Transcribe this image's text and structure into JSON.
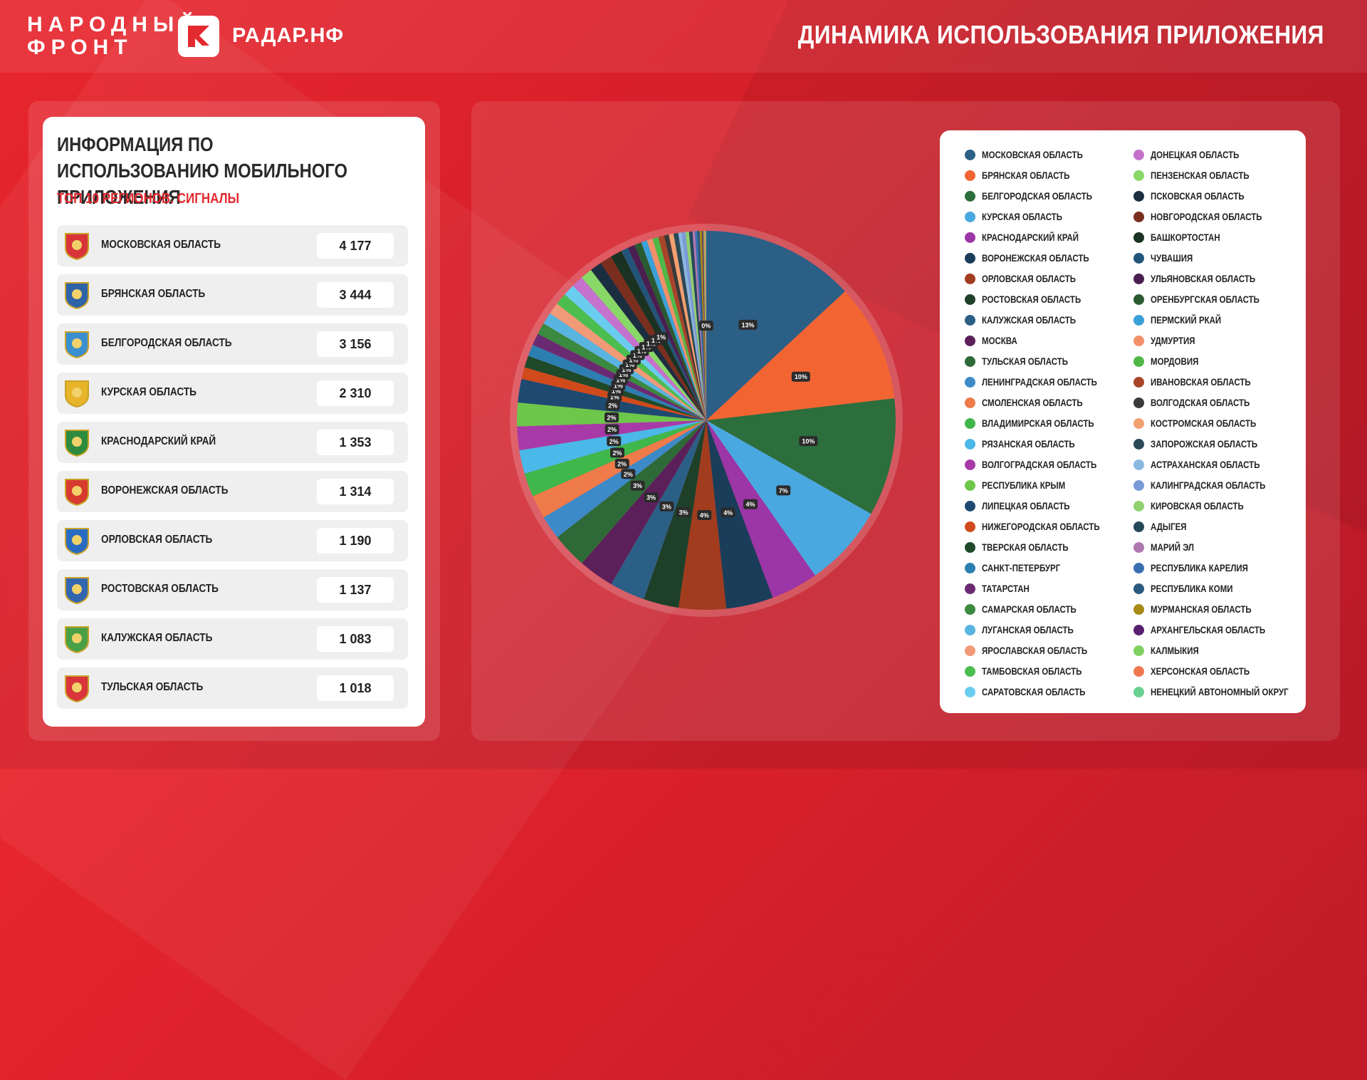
{
  "header": {
    "brand_line1": "НАРОДНЫЙ",
    "brand_line2": "ФРОНТ",
    "app_name": "РАДАР.НФ",
    "page_title": "ДИНАМИКА ИСПОЛЬЗОВАНИЯ ПРИЛОЖЕНИЯ"
  },
  "info": {
    "title": "ИНФОРМАЦИЯ ПО ИСПОЛЬЗОВАНИЮ МОБИЛЬНОГО ПРИЛОЖЕНИЯ",
    "subtitle": "ТОП 10 РЕГИОНОВ. СИГНАЛЫ",
    "rows": [
      {
        "name": "МОСКОВСКАЯ ОБЛАСТЬ",
        "value": "4 177",
        "crest_color": "#d8343a"
      },
      {
        "name": "БРЯНСКАЯ ОБЛАСТЬ",
        "value": "3 444",
        "crest_color": "#2f63a8"
      },
      {
        "name": "БЕЛГОРОДСКАЯ ОБЛАСТЬ",
        "value": "3 156",
        "crest_color": "#3a8fd0"
      },
      {
        "name": "КУРСКАЯ ОБЛАСТЬ",
        "value": "2 310",
        "crest_color": "#e7b42a"
      },
      {
        "name": "КРАСНОДАРСКИЙ КРАЙ",
        "value": "1 353",
        "crest_color": "#2e8a3e"
      },
      {
        "name": "ВОРОНЕЖСКАЯ ОБЛАСТЬ",
        "value": "1 314",
        "crest_color": "#d73a2f"
      },
      {
        "name": "ОРЛОВСКАЯ ОБЛАСТЬ",
        "value": "1 190",
        "crest_color": "#2a6bc2"
      },
      {
        "name": "РОСТОВСКАЯ ОБЛАСТЬ",
        "value": "1 137",
        "crest_color": "#3366b0"
      },
      {
        "name": "КАЛУЖСКАЯ ОБЛАСТЬ",
        "value": "1 083",
        "crest_color": "#49a046"
      },
      {
        "name": "ТУЛЬСКАЯ ОБЛАСТЬ",
        "value": "1 018",
        "crest_color": "#d8343a"
      }
    ]
  },
  "chart_data": {
    "type": "pie",
    "start_angle": "top, clockwise",
    "slices": [
      {
        "name": "МОСКОВСКАЯ ОБЛАСТЬ",
        "value": 13,
        "label": "13%",
        "color": "#2c5f86"
      },
      {
        "name": "БРЯНСКАЯ ОБЛАСТЬ",
        "value": 10,
        "label": "10%",
        "color": "#f26532"
      },
      {
        "name": "БЕЛГОРОДСКАЯ ОБЛАСТЬ",
        "value": 10,
        "label": "10%",
        "color": "#2c6e3c"
      },
      {
        "name": "КУРСКАЯ ОБЛАСТЬ",
        "value": 7,
        "label": "7%",
        "color": "#4aa8e0"
      },
      {
        "name": "КРАСНОДАРСКИЙ КРАЙ",
        "value": 4,
        "label": "4%",
        "color": "#9c35a6"
      },
      {
        "name": "ВОРОНЕЖСКАЯ ОБЛАСТЬ",
        "value": 4,
        "label": "4%",
        "color": "#1a3d5a"
      },
      {
        "name": "ОРЛОВСКАЯ ОБЛАСТЬ",
        "value": 4,
        "label": "4%",
        "color": "#a23c1e"
      },
      {
        "name": "РОСТОВСКАЯ ОБЛАСТЬ",
        "value": 3,
        "label": "3%",
        "color": "#1e4029"
      },
      {
        "name": "КАЛУЖСКАЯ ОБЛАСТЬ",
        "value": 3,
        "label": "3%",
        "color": "#2c5f86"
      },
      {
        "name": "МОСКВА",
        "value": 3,
        "label": "3%",
        "color": "#5b1f5a"
      },
      {
        "name": "ТУЛЬСКАЯ ОБЛАСТЬ",
        "value": 3,
        "label": "3%",
        "color": "#2e6a38"
      },
      {
        "name": "ЛЕНИНГРАДСКАЯ ОБЛАСТЬ",
        "value": 2,
        "label": "2%",
        "color": "#3d8ac9"
      },
      {
        "name": "СМОЛЕНСКАЯ ОБЛАСТЬ",
        "value": 2,
        "label": "2%",
        "color": "#ef7a4a"
      },
      {
        "name": "ВЛАДИМИРСКАЯ ОБЛАСТЬ",
        "value": 2,
        "label": "2%",
        "color": "#3fb74a"
      },
      {
        "name": "РЯЗАНСКАЯ ОБЛАСТЬ",
        "value": 2,
        "label": "2%",
        "color": "#4ab8e8"
      },
      {
        "name": "ВОЛГОГРАДСКАЯ ОБЛАСТЬ",
        "value": 2,
        "label": "2%",
        "color": "#a83aa8"
      },
      {
        "name": "РЕСПУБЛИКА КРЫМ",
        "value": 2,
        "label": "2%",
        "color": "#6cc74a"
      },
      {
        "name": "ЛИПЕЦКАЯ ОБЛАСТЬ",
        "value": 2,
        "label": "2%",
        "color": "#1e4a72"
      },
      {
        "name": "НИЖЕГОРОДСКАЯ ОБЛАСТЬ",
        "value": 1,
        "label": "1%",
        "color": "#d04a1c"
      },
      {
        "name": "ТВЕРСКАЯ ОБЛАСТЬ",
        "value": 1,
        "label": "1%",
        "color": "#1e4a2a"
      },
      {
        "name": "САНКТ-ПЕТЕРБУРГ",
        "value": 1,
        "label": "1%",
        "color": "#2d7eb0"
      },
      {
        "name": "ТАТАРСТАН",
        "value": 1,
        "label": "1%",
        "color": "#6a2a72"
      },
      {
        "name": "САМАРСКАЯ ОБЛАСТЬ",
        "value": 1,
        "label": "1%",
        "color": "#3a8a40"
      },
      {
        "name": "ЛУГАНСКАЯ ОБЛАСТЬ",
        "value": 1,
        "label": "1%",
        "color": "#5ab4e0"
      },
      {
        "name": "ЯРОСЛАВСКАЯ ОБЛАСТЬ",
        "value": 1,
        "label": "1%",
        "color": "#f09a78"
      },
      {
        "name": "ТАМБОВСКАЯ ОБЛАСТЬ",
        "value": 1,
        "label": "1%",
        "color": "#4cbe50"
      },
      {
        "name": "САРАТОВСКАЯ ОБЛАСТЬ",
        "value": 1,
        "label": "1%",
        "color": "#6acdf0"
      },
      {
        "name": "ДОНЕЦКАЯ ОБЛАСТЬ",
        "value": 1,
        "label": "1%",
        "color": "#c472cc"
      },
      {
        "name": "ПЕНЗЕНСКАЯ ОБЛАСТЬ",
        "value": 1,
        "label": "1%",
        "color": "#88d868"
      },
      {
        "name": "ПСКОВСКАЯ ОБЛАСТЬ",
        "value": 1,
        "label": "1%",
        "color": "#1a2e40"
      },
      {
        "name": "НОВГОРОДСКАЯ ОБЛАСТЬ",
        "value": 1,
        "label": "1%",
        "color": "#7a2e1e"
      },
      {
        "name": "БАШКОРТОСТАН",
        "value": 1,
        "label": "1%",
        "color": "#1a3222"
      },
      {
        "name": "ЧУВАШИЯ",
        "value": 0.6,
        "label": "",
        "color": "#23557a"
      },
      {
        "name": "УЛЬЯНОВСКАЯ ОБЛАСТЬ",
        "value": 0.6,
        "label": "",
        "color": "#4a1e50"
      },
      {
        "name": "ОРЕНБУРГСКАЯ ОБЛАСТЬ",
        "value": 0.6,
        "label": "",
        "color": "#2a5a30"
      },
      {
        "name": "ПЕРМСКИЙ РКАЙ",
        "value": 0.5,
        "label": "",
        "color": "#3aa0d8"
      },
      {
        "name": "УДМУРТИЯ",
        "value": 0.5,
        "label": "",
        "color": "#f2906a"
      },
      {
        "name": "МОРДОВИЯ",
        "value": 0.5,
        "label": "",
        "color": "#50b848"
      },
      {
        "name": "ИВАНОВСКАЯ ОБЛАСТЬ",
        "value": 0.5,
        "label": "",
        "color": "#a8442a"
      },
      {
        "name": "ВОЛГОДСКАЯ ОБЛАСТЬ",
        "value": 0.4,
        "label": "",
        "color": "#3a3a3a"
      },
      {
        "name": "КОСТРОМСКАЯ ОБЛАСТЬ",
        "value": 0.4,
        "label": "",
        "color": "#f2a070"
      },
      {
        "name": "ЗАПОРОЖСКАЯ ОБЛАСТЬ",
        "value": 0.4,
        "label": "",
        "color": "#2a4a58"
      },
      {
        "name": "АСТРАХАНСКАЯ ОБЛАСТЬ",
        "value": 0.3,
        "label": "",
        "color": "#8ab8e0"
      },
      {
        "name": "КАЛИНГРАДСКАЯ ОБЛАСТЬ",
        "value": 0.3,
        "label": "",
        "color": "#7a9ad8"
      },
      {
        "name": "КИРОВСКАЯ ОБЛАСТЬ",
        "value": 0.3,
        "label": "",
        "color": "#90d070"
      },
      {
        "name": "АДЫГЕЯ",
        "value": 0.3,
        "label": "",
        "color": "#23485a"
      },
      {
        "name": "МАРИЙ ЭЛ",
        "value": 0.2,
        "label": "",
        "color": "#b078b0"
      },
      {
        "name": "РЕСПУБЛИКА КАРЕЛИЯ",
        "value": 0.2,
        "label": "",
        "color": "#3a70b0"
      },
      {
        "name": "РЕСПУБЛИКА КОМИ",
        "value": 0.2,
        "label": "",
        "color": "#2a5a80"
      },
      {
        "name": "МУРМАНСКАЯ ОБЛАСТЬ",
        "value": 0.2,
        "label": "",
        "color": "#a88a18"
      },
      {
        "name": "АРХАНГЕЛЬСКАЯ ОБЛАСТЬ",
        "value": 0.1,
        "label": "",
        "color": "#5a2070"
      },
      {
        "name": "КАЛМЫКИЯ",
        "value": 0.1,
        "label": "",
        "color": "#80d060"
      },
      {
        "name": "ХЕРСОНСКАЯ ОБЛАСТЬ",
        "value": 0.1,
        "label": "",
        "color": "#f07850"
      },
      {
        "name": "НЕНЕЦКИЙ АВТОНОМНЫЙ ОКРУГ",
        "value": 0.05,
        "label": "0%",
        "color": "#6ad090"
      }
    ],
    "legend_placement": "right"
  }
}
